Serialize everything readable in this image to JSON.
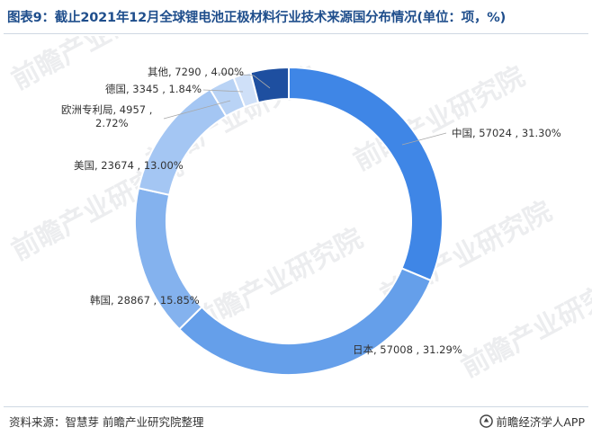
{
  "title": "图表9：截止2021年12月全球锂电池正极材料行业技术来源国分布情况(单位：项，%)",
  "source": "资料来源：智慧芽 前瞻产业研究院整理",
  "brand": "前瞻经济学人APP",
  "watermark": "前瞻产业研究院",
  "colors": {
    "title": "#1f4e8c",
    "china": "#3f86e6",
    "japan": "#659fea",
    "korea": "#84b2ee",
    "usa": "#a4c6f3",
    "europe": "#b9d3f5",
    "germany": "#cfe0f8",
    "other": "#1e4fa0"
  },
  "chart_data": {
    "type": "pie",
    "donut": true,
    "title": "图表9：截止2021年12月全球锂电池正极材料行业技术来源国分布情况(单位：项，%)",
    "unit": "项，%",
    "slices": [
      {
        "name": "中国",
        "value": 57024,
        "percent": 31.3,
        "label": "中国, 57024 , 31.30%"
      },
      {
        "name": "日本",
        "value": 57008,
        "percent": 31.29,
        "label": "日本, 57008 , 31.29%"
      },
      {
        "name": "韩国",
        "value": 28867,
        "percent": 15.85,
        "label": "韩国, 28867 , 15.85%"
      },
      {
        "name": "美国",
        "value": 23674,
        "percent": 13.0,
        "label": "美国, 23674 , 13.00%"
      },
      {
        "name": "欧洲专利局",
        "value": 4957,
        "percent": 2.72,
        "label": "欧洲专利局, 4957 ,",
        "label2": "2.72%"
      },
      {
        "name": "德国",
        "value": 3345,
        "percent": 1.84,
        "label": "德国, 3345 , 1.84%"
      },
      {
        "name": "其他",
        "value": 7290,
        "percent": 4.0,
        "label": "其他, 7290 , 4.00%"
      }
    ]
  }
}
